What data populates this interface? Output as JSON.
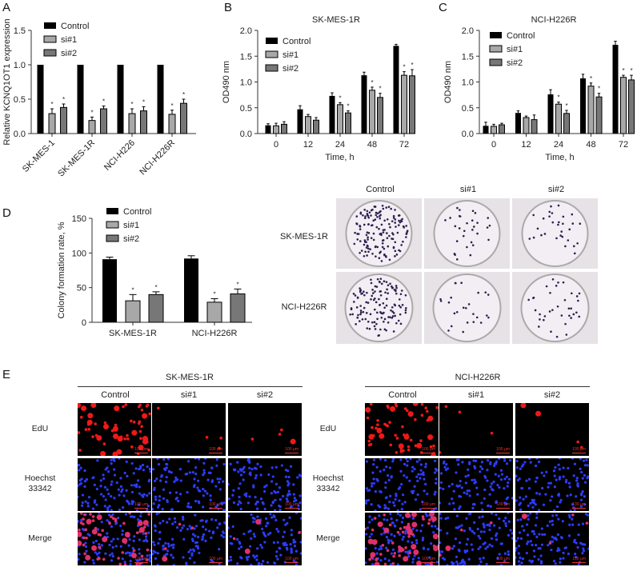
{
  "panels": {
    "a": "A",
    "b": "B",
    "c": "C",
    "d": "D",
    "e": "E"
  },
  "colors": {
    "Control": "#000000",
    "si#1": "#a8a8a8",
    "si#2": "#777777"
  },
  "chart_data": [
    {
      "id": "A",
      "type": "bar",
      "title": "",
      "ylabel": "Relative KCNQ1OT1 expression",
      "xlabel": "",
      "categories": [
        "SK-MES-1",
        "SK-MES-1R",
        "NCI-H226",
        "NCI-H226R"
      ],
      "ylim": [
        0,
        1.5
      ],
      "yticks": [
        "0.0",
        "0.5",
        "1.0",
        "1.5"
      ],
      "legend": "top-left",
      "series": [
        {
          "name": "Control",
          "values": [
            1,
            1,
            1,
            1
          ],
          "errors": [
            0,
            0,
            0,
            0
          ],
          "sig": [
            false,
            false,
            false,
            false
          ]
        },
        {
          "name": "si#1",
          "values": [
            0.29,
            0.19,
            0.29,
            0.28
          ],
          "errors": [
            0.07,
            0.05,
            0.07,
            0.06
          ],
          "sig": [
            true,
            true,
            true,
            true
          ]
        },
        {
          "name": "si#2",
          "values": [
            0.38,
            0.36,
            0.33,
            0.44
          ],
          "errors": [
            0.05,
            0.04,
            0.06,
            0.06
          ],
          "sig": [
            true,
            true,
            true,
            true
          ]
        }
      ]
    },
    {
      "id": "B",
      "type": "bar",
      "title": "SK-MES-1R",
      "ylabel": "OD490 nm",
      "xlabel": "Time, h",
      "categories": [
        "0",
        "12",
        "24",
        "48",
        "72"
      ],
      "ylim": [
        0,
        2
      ],
      "yticks": [
        "0.0",
        "0.5",
        "1.0",
        "1.5",
        "2.0"
      ],
      "legend": "top-left",
      "series": [
        {
          "name": "Control",
          "values": [
            0.16,
            0.47,
            0.73,
            1.13,
            1.7
          ],
          "errors": [
            0.03,
            0.07,
            0.06,
            0.06,
            0.03
          ],
          "sig": [
            false,
            false,
            false,
            false,
            false
          ]
        },
        {
          "name": "si#1",
          "values": [
            0.15,
            0.33,
            0.56,
            0.84,
            1.13
          ],
          "errors": [
            0.05,
            0.04,
            0.04,
            0.06,
            0.07
          ],
          "sig": [
            false,
            false,
            true,
            true,
            true
          ]
        },
        {
          "name": "si#2",
          "values": [
            0.18,
            0.26,
            0.4,
            0.7,
            1.12
          ],
          "errors": [
            0.05,
            0.05,
            0.04,
            0.08,
            0.12
          ],
          "sig": [
            false,
            false,
            true,
            true,
            true
          ]
        }
      ]
    },
    {
      "id": "C",
      "type": "bar",
      "title": "NCI-H226R",
      "ylabel": "OD490 nm",
      "xlabel": "Time, h",
      "categories": [
        "0",
        "12",
        "24",
        "48",
        "72"
      ],
      "ylim": [
        0,
        2
      ],
      "yticks": [
        "0.0",
        "0.5",
        "1.0",
        "1.5",
        "2.0"
      ],
      "legend": "top-left",
      "series": [
        {
          "name": "Control",
          "values": [
            0.15,
            0.4,
            0.76,
            1.07,
            1.72
          ],
          "errors": [
            0.07,
            0.04,
            0.09,
            0.08,
            0.07
          ],
          "sig": [
            false,
            false,
            false,
            false,
            false
          ]
        },
        {
          "name": "si#1",
          "values": [
            0.14,
            0.31,
            0.57,
            0.92,
            1.09
          ],
          "errors": [
            0.04,
            0.03,
            0.04,
            0.06,
            0.04
          ],
          "sig": [
            false,
            false,
            true,
            true,
            true
          ]
        },
        {
          "name": "si#2",
          "values": [
            0.17,
            0.27,
            0.39,
            0.71,
            1.04
          ],
          "errors": [
            0.03,
            0.09,
            0.06,
            0.07,
            0.09
          ],
          "sig": [
            false,
            false,
            true,
            true,
            true
          ]
        }
      ]
    },
    {
      "id": "D",
      "type": "bar",
      "title": "",
      "ylabel": "Colony formation rate, %",
      "xlabel": "",
      "categories": [
        "SK-MES-1R",
        "NCI-H226R"
      ],
      "ylim": [
        0,
        150
      ],
      "yticks": [
        "0",
        "50",
        "100",
        "150"
      ],
      "legend": "top-left",
      "series": [
        {
          "name": "Control",
          "values": [
            91,
            92
          ],
          "errors": [
            3,
            4
          ],
          "sig": [
            false,
            false
          ]
        },
        {
          "name": "si#1",
          "values": [
            31,
            29
          ],
          "errors": [
            9,
            5
          ],
          "sig": [
            true,
            true
          ]
        },
        {
          "name": "si#2",
          "values": [
            40,
            41
          ],
          "errors": [
            4,
            7
          ],
          "sig": [
            true,
            true
          ]
        }
      ]
    }
  ],
  "sig_mark": "*",
  "colony": {
    "columns": [
      "Control",
      "si#1",
      "si#2"
    ],
    "rows": [
      "SK-MES-1R",
      "NCI-H226R"
    ]
  },
  "edu": {
    "groups": [
      "SK-MES-1R",
      "NCI-H226R"
    ],
    "columns": [
      "Control",
      "si#1",
      "si#2"
    ],
    "rows": [
      "EdU",
      "Hoechst 33342",
      "Merge"
    ],
    "scale_bar": "100 μm"
  }
}
